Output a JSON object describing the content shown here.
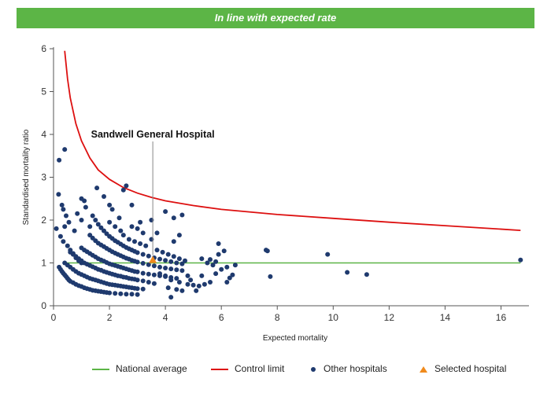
{
  "banner": {
    "text": "In line with expected rate",
    "color": "#5cb546"
  },
  "chart_data": {
    "type": "scatter",
    "xlabel": "Expected mortality",
    "ylabel": "Standardised mortality ratio",
    "xlim": [
      0,
      17
    ],
    "ylim": [
      0,
      6
    ],
    "xticks": [
      0,
      2,
      4,
      6,
      8,
      10,
      12,
      14,
      16
    ],
    "yticks": [
      0,
      1,
      2,
      3,
      4,
      5,
      6
    ],
    "grid": false,
    "legend_position": "bottom",
    "annotation": {
      "text": "Sandwell General Hospital",
      "x": 3.55,
      "y": 1.07
    },
    "national_average": {
      "name": "National average",
      "value": 1,
      "x_range": [
        0.4,
        16.7
      ],
      "color": "#5cb546"
    },
    "control_limit": {
      "name": "Control limit",
      "color": "#dd1010",
      "x": [
        0.4,
        0.5,
        0.6,
        0.8,
        1.0,
        1.3,
        1.6,
        2.0,
        2.5,
        3.0,
        3.5,
        4.0,
        5.0,
        6.0,
        7.0,
        8.0,
        10.0,
        12.0,
        14.0,
        16.7
      ],
      "y": [
        5.95,
        5.3,
        4.85,
        4.25,
        3.85,
        3.45,
        3.17,
        2.95,
        2.76,
        2.63,
        2.53,
        2.45,
        2.34,
        2.25,
        2.19,
        2.13,
        2.04,
        1.95,
        1.87,
        1.76
      ]
    },
    "series": [
      {
        "name": "Other hospitals",
        "color": "#1f3a6e",
        "points": [
          [
            0.2,
            3.4
          ],
          [
            0.4,
            3.65
          ],
          [
            0.18,
            2.6
          ],
          [
            0.3,
            2.35
          ],
          [
            0.35,
            2.25
          ],
          [
            0.45,
            2.1
          ],
          [
            0.55,
            1.95
          ],
          [
            0.4,
            1.85
          ],
          [
            0.25,
            1.62
          ],
          [
            0.35,
            1.5
          ],
          [
            0.5,
            1.4
          ],
          [
            0.6,
            1.3
          ],
          [
            0.7,
            1.22
          ],
          [
            0.8,
            1.12
          ],
          [
            0.9,
            1.05
          ],
          [
            1.0,
            1.0
          ],
          [
            0.1,
            1.8
          ],
          [
            0.75,
            1.75
          ],
          [
            0.85,
            2.15
          ],
          [
            1.0,
            2.5
          ],
          [
            1.1,
            2.45
          ],
          [
            1.15,
            2.3
          ],
          [
            1.0,
            2.0
          ],
          [
            1.3,
            1.85
          ],
          [
            0.2,
            0.9
          ],
          [
            0.25,
            0.85
          ],
          [
            0.3,
            0.8
          ],
          [
            0.35,
            0.76
          ],
          [
            0.4,
            0.72
          ],
          [
            0.45,
            0.68
          ],
          [
            0.5,
            0.64
          ],
          [
            0.55,
            0.6
          ],
          [
            0.6,
            0.57
          ],
          [
            0.7,
            0.54
          ],
          [
            0.8,
            0.5
          ],
          [
            0.9,
            0.47
          ],
          [
            1.0,
            0.45
          ],
          [
            1.1,
            0.42
          ],
          [
            1.2,
            0.4
          ],
          [
            1.3,
            0.38
          ],
          [
            1.4,
            0.36
          ],
          [
            1.5,
            0.35
          ],
          [
            1.6,
            0.34
          ],
          [
            1.7,
            0.33
          ],
          [
            1.8,
            0.32
          ],
          [
            1.9,
            0.31
          ],
          [
            2.0,
            0.3
          ],
          [
            2.2,
            0.29
          ],
          [
            2.4,
            0.28
          ],
          [
            2.6,
            0.27
          ],
          [
            2.8,
            0.27
          ],
          [
            3.0,
            0.26
          ],
          [
            0.4,
            1.0
          ],
          [
            0.5,
            0.95
          ],
          [
            0.6,
            0.9
          ],
          [
            0.7,
            0.85
          ],
          [
            0.8,
            0.8
          ],
          [
            0.9,
            0.76
          ],
          [
            1.0,
            0.73
          ],
          [
            1.1,
            0.7
          ],
          [
            1.2,
            0.67
          ],
          [
            1.3,
            0.64
          ],
          [
            1.4,
            0.62
          ],
          [
            1.5,
            0.6
          ],
          [
            1.6,
            0.58
          ],
          [
            1.7,
            0.56
          ],
          [
            1.8,
            0.54
          ],
          [
            1.9,
            0.52
          ],
          [
            2.0,
            0.5
          ],
          [
            2.1,
            0.49
          ],
          [
            2.2,
            0.48
          ],
          [
            2.3,
            0.47
          ],
          [
            2.4,
            0.46
          ],
          [
            2.5,
            0.45
          ],
          [
            2.6,
            0.44
          ],
          [
            2.7,
            0.43
          ],
          [
            2.8,
            0.42
          ],
          [
            2.9,
            0.41
          ],
          [
            3.0,
            0.4
          ],
          [
            3.2,
            0.39
          ],
          [
            0.6,
            1.25
          ],
          [
            0.7,
            1.2
          ],
          [
            0.8,
            1.15
          ],
          [
            0.9,
            1.1
          ],
          [
            1.0,
            1.05
          ],
          [
            1.1,
            1.0
          ],
          [
            1.2,
            0.97
          ],
          [
            1.3,
            0.94
          ],
          [
            1.4,
            0.91
          ],
          [
            1.5,
            0.88
          ],
          [
            1.6,
            0.85
          ],
          [
            1.7,
            0.83
          ],
          [
            1.8,
            0.8
          ],
          [
            1.9,
            0.78
          ],
          [
            2.0,
            0.76
          ],
          [
            2.1,
            0.74
          ],
          [
            2.2,
            0.72
          ],
          [
            2.3,
            0.7
          ],
          [
            2.4,
            0.69
          ],
          [
            2.5,
            0.67
          ],
          [
            2.6,
            0.66
          ],
          [
            2.7,
            0.64
          ],
          [
            2.8,
            0.63
          ],
          [
            2.9,
            0.62
          ],
          [
            3.0,
            0.6
          ],
          [
            3.2,
            0.58
          ],
          [
            3.4,
            0.55
          ],
          [
            3.6,
            0.52
          ],
          [
            1.0,
            1.35
          ],
          [
            1.1,
            1.3
          ],
          [
            1.2,
            1.26
          ],
          [
            1.3,
            1.22
          ],
          [
            1.4,
            1.18
          ],
          [
            1.5,
            1.14
          ],
          [
            1.6,
            1.1
          ],
          [
            1.7,
            1.07
          ],
          [
            1.8,
            1.04
          ],
          [
            1.9,
            1.01
          ],
          [
            2.0,
            0.98
          ],
          [
            2.1,
            0.96
          ],
          [
            2.2,
            0.94
          ],
          [
            2.3,
            0.92
          ],
          [
            2.4,
            0.9
          ],
          [
            2.5,
            0.88
          ],
          [
            2.6,
            0.86
          ],
          [
            2.7,
            0.84
          ],
          [
            2.8,
            0.82
          ],
          [
            2.9,
            0.8
          ],
          [
            3.0,
            0.79
          ],
          [
            3.2,
            0.76
          ],
          [
            3.4,
            0.74
          ],
          [
            3.6,
            0.72
          ],
          [
            3.8,
            0.7
          ],
          [
            4.0,
            0.68
          ],
          [
            4.2,
            0.66
          ],
          [
            4.4,
            0.64
          ],
          [
            1.3,
            1.65
          ],
          [
            1.4,
            1.58
          ],
          [
            1.5,
            1.52
          ],
          [
            1.6,
            1.46
          ],
          [
            1.7,
            1.42
          ],
          [
            1.8,
            1.38
          ],
          [
            1.9,
            1.34
          ],
          [
            2.0,
            1.3
          ],
          [
            2.1,
            1.26
          ],
          [
            2.2,
            1.23
          ],
          [
            2.3,
            1.2
          ],
          [
            2.4,
            1.17
          ],
          [
            2.5,
            1.14
          ],
          [
            2.6,
            1.11
          ],
          [
            2.7,
            1.09
          ],
          [
            2.8,
            1.06
          ],
          [
            2.9,
            1.04
          ],
          [
            3.0,
            1.02
          ],
          [
            3.2,
            0.99
          ],
          [
            3.4,
            0.96
          ],
          [
            3.6,
            0.93
          ],
          [
            3.8,
            0.9
          ],
          [
            4.0,
            0.88
          ],
          [
            4.2,
            0.86
          ],
          [
            4.4,
            0.84
          ],
          [
            4.6,
            0.82
          ],
          [
            1.4,
            2.1
          ],
          [
            1.5,
            2.0
          ],
          [
            1.6,
            1.9
          ],
          [
            1.7,
            1.82
          ],
          [
            1.8,
            1.75
          ],
          [
            1.9,
            1.68
          ],
          [
            2.0,
            1.62
          ],
          [
            2.1,
            1.57
          ],
          [
            2.2,
            1.52
          ],
          [
            2.3,
            1.48
          ],
          [
            2.4,
            1.44
          ],
          [
            2.5,
            1.4
          ],
          [
            2.6,
            1.36
          ],
          [
            2.7,
            1.33
          ],
          [
            2.8,
            1.3
          ],
          [
            2.9,
            1.27
          ],
          [
            3.0,
            1.24
          ],
          [
            3.2,
            1.2
          ],
          [
            3.4,
            1.16
          ],
          [
            3.6,
            1.12
          ],
          [
            3.8,
            1.09
          ],
          [
            4.0,
            1.06
          ],
          [
            4.2,
            1.03
          ],
          [
            4.4,
            1.0
          ],
          [
            4.6,
            0.98
          ],
          [
            1.55,
            2.75
          ],
          [
            1.8,
            2.55
          ],
          [
            2.0,
            2.35
          ],
          [
            2.1,
            2.25
          ],
          [
            2.35,
            2.05
          ],
          [
            2.5,
            2.7
          ],
          [
            2.6,
            2.8
          ],
          [
            2.8,
            2.35
          ],
          [
            2.0,
            1.95
          ],
          [
            2.2,
            1.85
          ],
          [
            2.4,
            1.75
          ],
          [
            2.5,
            1.65
          ],
          [
            2.7,
            1.55
          ],
          [
            2.9,
            1.5
          ],
          [
            3.1,
            1.45
          ],
          [
            3.3,
            1.4
          ],
          [
            2.8,
            1.85
          ],
          [
            3.0,
            1.8
          ],
          [
            3.2,
            1.7
          ],
          [
            3.5,
            1.55
          ],
          [
            3.7,
            1.7
          ],
          [
            3.1,
            1.95
          ],
          [
            3.5,
            2.0
          ],
          [
            4.0,
            2.2
          ],
          [
            4.3,
            2.05
          ],
          [
            4.6,
            2.12
          ],
          [
            4.5,
            1.65
          ],
          [
            4.3,
            1.5
          ],
          [
            3.7,
            1.3
          ],
          [
            3.9,
            1.25
          ],
          [
            4.1,
            1.2
          ],
          [
            4.3,
            1.15
          ],
          [
            4.5,
            1.1
          ],
          [
            4.7,
            1.05
          ],
          [
            3.8,
            0.75
          ],
          [
            4.0,
            0.7
          ],
          [
            4.2,
            0.6
          ],
          [
            4.5,
            0.55
          ],
          [
            4.8,
            0.5
          ],
          [
            5.0,
            0.48
          ],
          [
            5.2,
            0.46
          ],
          [
            5.4,
            0.5
          ],
          [
            4.1,
            0.42
          ],
          [
            4.4,
            0.38
          ],
          [
            4.2,
            0.2
          ],
          [
            4.6,
            0.35
          ],
          [
            4.9,
            0.6
          ],
          [
            5.1,
            0.35
          ],
          [
            5.3,
            0.7
          ],
          [
            5.6,
            0.55
          ],
          [
            5.8,
            0.75
          ],
          [
            4.8,
            0.7
          ],
          [
            5.3,
            1.1
          ],
          [
            5.5,
            1.0
          ],
          [
            5.6,
            1.08
          ],
          [
            5.7,
            0.95
          ],
          [
            5.8,
            1.03
          ],
          [
            5.9,
            1.45
          ],
          [
            5.9,
            1.2
          ],
          [
            6.1,
            1.28
          ],
          [
            6.0,
            0.85
          ],
          [
            6.2,
            0.9
          ],
          [
            6.3,
            0.65
          ],
          [
            6.4,
            0.72
          ],
          [
            6.5,
            0.95
          ],
          [
            6.2,
            0.55
          ],
          [
            7.6,
            1.3
          ],
          [
            7.65,
            1.28
          ],
          [
            7.75,
            0.68
          ],
          [
            9.8,
            1.2
          ],
          [
            10.5,
            0.78
          ],
          [
            11.2,
            0.73
          ],
          [
            16.7,
            1.07
          ]
        ]
      },
      {
        "name": "Selected hospital",
        "color": "#f08a1c",
        "marker": "triangle",
        "points": [
          [
            3.55,
            1.07
          ]
        ]
      }
    ]
  }
}
